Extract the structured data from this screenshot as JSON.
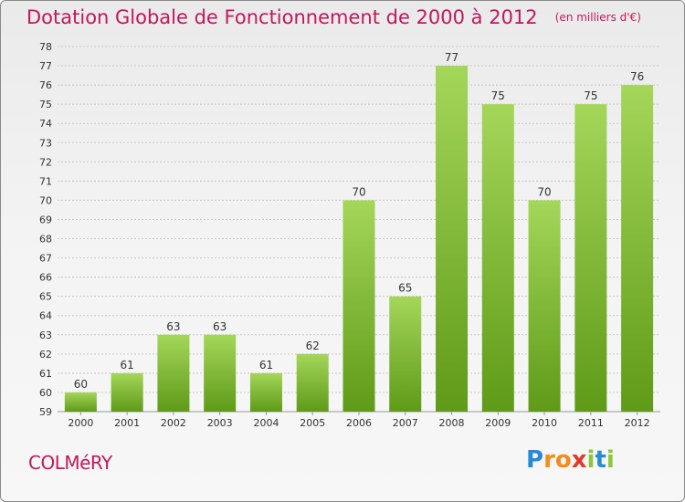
{
  "header": {
    "title": "Dotation Globale de Fonctionnement de 2000 à 2012",
    "unit": "(en milliers d'€)"
  },
  "footer": {
    "commune": "COLMéRY",
    "brand": "Proxiti",
    "brand_letters": [
      {
        "ch": "P",
        "color": "#2a8ad6"
      },
      {
        "ch": "r",
        "color": "#f28c1c"
      },
      {
        "ch": "o",
        "color": "#f28c1c"
      },
      {
        "ch": "x",
        "color": "#e03a2f"
      },
      {
        "ch": "i",
        "color": "#8cc63e"
      },
      {
        "ch": "t",
        "color": "#2a8ad6"
      },
      {
        "ch": "i",
        "color": "#8cc63e"
      }
    ]
  },
  "colors": {
    "title": "#c2185b",
    "bar_light": "#a4d65a",
    "bar_dark": "#5f9a18",
    "grid": "#c8c8c8",
    "axis_text": "#333333"
  },
  "chart_data": {
    "type": "bar",
    "categories": [
      "2000",
      "2001",
      "2002",
      "2003",
      "2004",
      "2005",
      "2006",
      "2007",
      "2008",
      "2009",
      "2010",
      "2011",
      "2012"
    ],
    "values": [
      60,
      61,
      63,
      63,
      61,
      62,
      70,
      65,
      77,
      75,
      70,
      75,
      76
    ],
    "ylim": [
      59,
      78
    ],
    "yticks": [
      59,
      60,
      61,
      62,
      63,
      64,
      65,
      66,
      67,
      68,
      69,
      70,
      71,
      72,
      73,
      74,
      75,
      76,
      77,
      78
    ],
    "grid": true,
    "xlabel": "",
    "ylabel": ""
  }
}
